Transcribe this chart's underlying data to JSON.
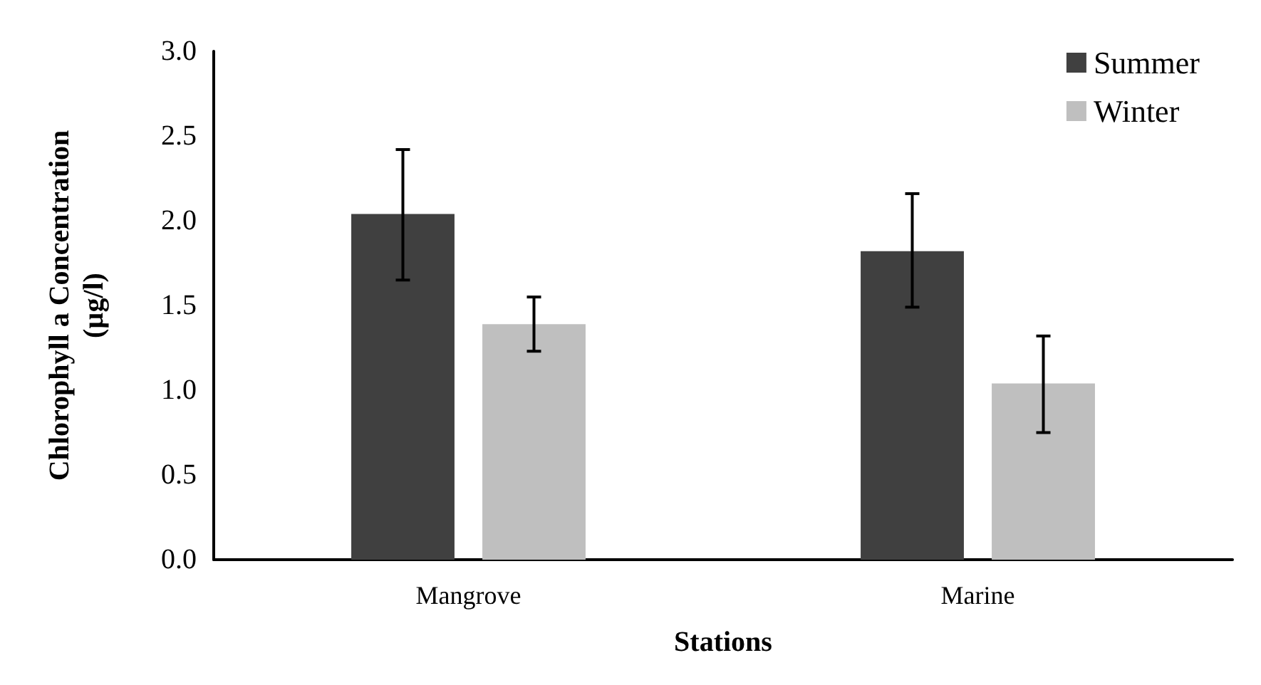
{
  "chart_data": {
    "type": "bar",
    "xlabel": "Stations",
    "ylabel": "Chlorophyll a Concentration\n(µg/l)",
    "categories": [
      "Mangrove",
      "Marine"
    ],
    "series": [
      {
        "name": "Summer",
        "color": "#404040",
        "values": [
          2.04,
          1.82
        ],
        "errors": [
          [
            1.65,
            2.42
          ],
          [
            1.49,
            2.16
          ]
        ]
      },
      {
        "name": "Winter",
        "color": "#bfbfbf",
        "values": [
          1.39,
          1.04
        ],
        "errors": [
          [
            1.23,
            1.55
          ],
          [
            0.75,
            1.32
          ]
        ]
      }
    ],
    "ylim": [
      0,
      3
    ],
    "yticks": [
      {
        "value": 0,
        "label": "0.0"
      },
      0.5,
      {
        "value": 1,
        "label": "1.0"
      },
      1.5,
      {
        "value": 2,
        "label": "2.0"
      },
      2.5,
      {
        "value": 3,
        "label": "3.0"
      }
    ],
    "grid": false,
    "legend": "top right"
  }
}
